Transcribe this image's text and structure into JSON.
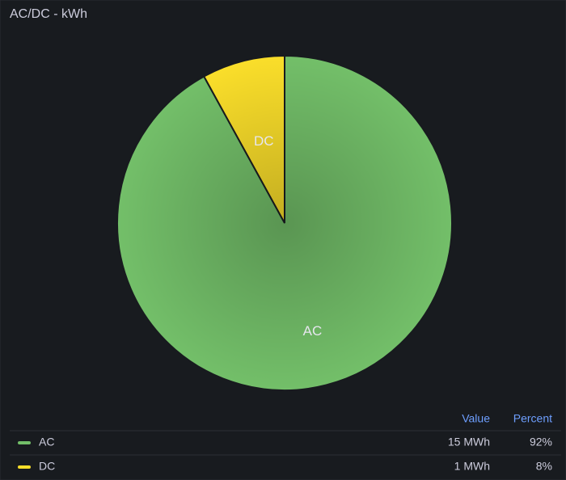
{
  "chart_data": {
    "type": "pie",
    "title": "AC/DC - kWh",
    "categories": [
      "AC",
      "DC"
    ],
    "values": [
      92,
      8
    ],
    "value_labels": [
      "92%",
      "8%"
    ],
    "legend_values": [
      "15 MWh",
      "1 MWh"
    ],
    "legend_headers": [
      "Value",
      "Percent"
    ],
    "colors": [
      "#73bf69",
      "#fade2a"
    ]
  }
}
